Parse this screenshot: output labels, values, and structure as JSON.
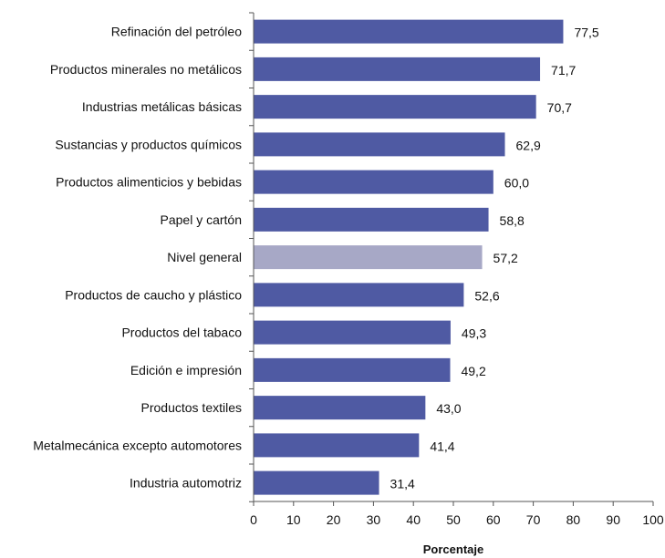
{
  "chart_data": {
    "type": "bar",
    "orientation": "horizontal",
    "title": "",
    "xlabel": "Porcentaje",
    "ylabel": "",
    "xlim": [
      0,
      100
    ],
    "x_ticks": [
      "0",
      "10",
      "20",
      "30",
      "40",
      "50",
      "60",
      "70",
      "80",
      "90",
      "100"
    ],
    "grid": false,
    "categories": [
      "Refinación del petróleo",
      "Productos minerales no metálicos",
      "Industrias metálicas básicas",
      "Sustancias y productos químicos",
      "Productos alimenticios y bebidas",
      "Papel y cartón",
      "Nivel general",
      "Productos de caucho y plástico",
      "Productos del tabaco",
      "Edición e impresión",
      "Productos textiles",
      "Metalmecánica excepto automotores",
      "Industria automotriz"
    ],
    "values": [
      77.5,
      71.7,
      70.7,
      62.9,
      60.0,
      58.8,
      57.2,
      52.6,
      49.3,
      49.2,
      43.0,
      41.4,
      31.4
    ],
    "value_labels": [
      "77,5",
      "71,7",
      "70,7",
      "62,9",
      "60,0",
      "58,8",
      "57,2",
      "52,6",
      "49,3",
      "49,2",
      "43,0",
      "41,4",
      "31,4"
    ],
    "highlight_category": "Nivel general",
    "colors": {
      "bar": "#4f5aa3",
      "highlight": "#a7a8c6",
      "axis": "#555555"
    }
  }
}
